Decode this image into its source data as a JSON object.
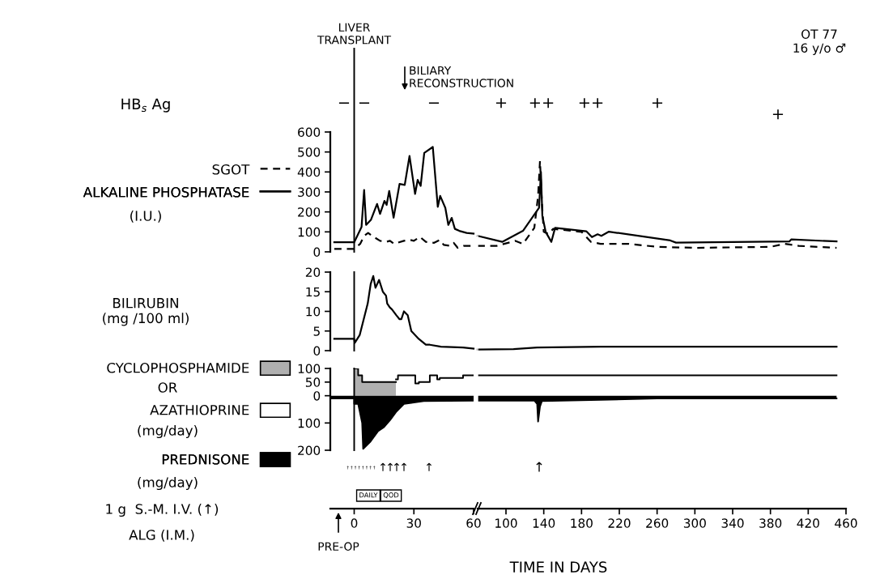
{
  "chart_data": [
    {
      "type": "line",
      "legend": "left",
      "ylabel": "(I.U.)",
      "xlim": [
        -12,
        60
      ],
      "ylim": [
        0,
        600
      ],
      "yticks": [
        0,
        100,
        200,
        300,
        400,
        500,
        600
      ],
      "tick_labels": "y",
      "series": [
        {
          "name": "SGOT",
          "color": "#000000",
          "line_style": "dashed",
          "x": [
            -10,
            0,
            3,
            5,
            7,
            9,
            13,
            16,
            18,
            20,
            25,
            28,
            30,
            33,
            36,
            40,
            43,
            45,
            48,
            50,
            52,
            55,
            60
          ],
          "values": [
            15,
            15,
            40,
            80,
            95,
            80,
            55,
            50,
            55,
            40,
            55,
            60,
            55,
            75,
            50,
            45,
            60,
            35,
            30,
            45,
            20,
            30,
            30
          ]
        },
        {
          "name": "ALKALINE PHOSPHATASE",
          "color": "#000000",
          "line_style": "solid",
          "x": [
            -10,
            0,
            3.7,
            5,
            6,
            8.4,
            11.5,
            13,
            15.2,
            16.3,
            17.6,
            19.8,
            22.8,
            25.4,
            27.8,
            30.6,
            31.9,
            33.4,
            35.2,
            39.5,
            41.3,
            42,
            43.2,
            45.8,
            47.3,
            49,
            50.6,
            52.8,
            56.5,
            60
          ],
          "values": [
            48,
            48,
            125,
            310,
            135,
            160,
            240,
            190,
            255,
            235,
            305,
            171,
            340,
            335,
            480,
            290,
            360,
            330,
            495,
            525,
            310,
            225,
            280,
            220,
            135,
            170,
            115,
            105,
            95,
            91
          ]
        }
      ],
      "ref_lines": [
        {
          "axis": "x",
          "value": 0,
          "label": "LIVER\nTRANSPLANT",
          "color": "#000000"
        }
      ],
      "annotations": [
        "HB$_{s}$ Ag",
        "−",
        "−",
        "−",
        "BILIARY\nRECONSTRUCTION"
      ]
    },
    {
      "type": "line",
      "xlim": [
        70,
        460
      ],
      "ylim": [
        0,
        600
      ],
      "tick_labels": false,
      "series": [
        {
          "color": "#000000",
          "line_style": "dashed",
          "x": [
            70,
            90,
            110,
            118,
            130,
            134,
            136,
            138,
            140,
            145,
            150,
            180,
            190,
            200,
            230,
            260,
            300,
            380,
            395,
            410,
            450
          ],
          "values": [
            30,
            30,
            55,
            40,
            120,
            280,
            455,
            250,
            100,
            90,
            115,
            100,
            50,
            40,
            40,
            25,
            20,
            25,
            40,
            30,
            20
          ]
        },
        {
          "color": "#000000",
          "line_style": "solid",
          "x": [
            70,
            96,
            118,
            135,
            137,
            138.5,
            142,
            148,
            152,
            185,
            191,
            197,
            201,
            209,
            274,
            280,
            400,
            402,
            450
          ],
          "values": [
            80,
            50,
            105,
            220,
            400,
            180,
            100,
            50,
            120,
            103,
            74,
            88,
            80,
            101,
            57,
            46,
            52,
            62,
            52
          ]
        }
      ],
      "annotations": [
        "+",
        "++",
        "++",
        "+",
        "+",
        "OT 77\n16 y/o ♂"
      ]
    },
    {
      "type": "line",
      "ylabel": "BILIRUBIN\n(mg /100 ml)",
      "xlim": [
        -12,
        60
      ],
      "ylim": [
        0,
        20
      ],
      "yticks": [
        0,
        5,
        10,
        15,
        20
      ],
      "tick_labels": "y",
      "series": [
        {
          "color": "#000000",
          "line_style": "solid",
          "x": [
            -10,
            0,
            0.3,
            2.8,
            6.8,
            8.3,
            9.6,
            10.7,
            12.5,
            14.4,
            16,
            16.6,
            17.9,
            19,
            21.2,
            22.8,
            23.7,
            25,
            26.9,
            28.7,
            32.4,
            36,
            38,
            43.6,
            54.7,
            60
          ],
          "values": [
            3,
            3,
            2,
            4,
            12,
            17,
            19,
            16,
            18,
            15,
            14,
            12,
            11,
            10.5,
            9,
            8,
            8,
            10,
            9,
            5,
            3,
            1.5,
            1.5,
            1,
            0.8,
            0.5
          ]
        }
      ],
      "ref_lines": [
        {
          "axis": "x",
          "value": 0,
          "color": "#000000"
        }
      ]
    },
    {
      "type": "line",
      "xlim": [
        70,
        460
      ],
      "ylim": [
        0,
        20
      ],
      "tick_labels": false,
      "series": [
        {
          "color": "#000000",
          "line_style": "solid",
          "x": [
            70,
            108,
            133,
            200,
            450
          ],
          "values": [
            0.3,
            0.4,
            0.8,
            1,
            1
          ]
        }
      ]
    },
    {
      "type": "area",
      "legend": "left",
      "ylabel": "(mg/day)",
      "xlim": [
        -12,
        60
      ],
      "xticks": [
        0,
        30,
        60
      ],
      "ylim": [
        -200,
        100
      ],
      "yticks": [
        {
          "value": -200,
          "label": "200"
        },
        {
          "value": -100,
          "label": "100"
        },
        0,
        50,
        100
      ],
      "series": [
        {
          "name": "CYCLOPHOSPHAMIDE",
          "color": "#b0b0b0",
          "x": [
            0,
            2,
            2,
            4,
            4,
            21
          ],
          "values": [
            100,
            100,
            75,
            75,
            50,
            50
          ]
        },
        {
          "name": "AZATHIOPRINE",
          "color": "#ffffff",
          "x": [
            21,
            22,
            22,
            24,
            24,
            30.7,
            30.7,
            32.5,
            32.5,
            38,
            38,
            41.7,
            41.7,
            43,
            43,
            54.7,
            54.7,
            60
          ],
          "values": [
            60,
            60,
            75,
            75,
            75,
            75,
            45,
            45,
            50,
            50,
            75,
            75,
            60,
            60,
            65,
            65,
            75,
            75
          ]
        },
        {
          "name": "PREDNISONE",
          "color": "#000000",
          "x": [
            -12,
            0,
            0,
            2,
            4,
            4.5,
            8,
            12,
            15,
            18,
            21,
            25,
            30,
            35,
            60
          ],
          "values": [
            -10,
            -10,
            -30,
            -30,
            -100,
            -195,
            -170,
            -130,
            -115,
            -90,
            -60,
            -30,
            -25,
            -20,
            -18
          ]
        }
      ],
      "ref_lines": [
        {
          "axis": "x",
          "value": 0,
          "color": "#000000"
        }
      ],
      "annotations": [
        "OR",
        "(mg/day)",
        "1 g  S.-M. I.V. (↑)",
        "ALG (I.M.)",
        "↑↑↑↑↑↑↑↑",
        "↑",
        "↑",
        "↑",
        "↑",
        "↑",
        "DAILY",
        "QOD",
        "PRE-OP"
      ]
    },
    {
      "type": "area",
      "xlabel": "TIME IN DAYS",
      "xlim": [
        70,
        460
      ],
      "xticks": [
        100,
        140,
        180,
        220,
        260,
        300,
        340,
        380,
        420,
        460
      ],
      "ylim": [
        -200,
        100
      ],
      "tick_labels": "x",
      "series": [
        {
          "color": "#ffffff",
          "x": [
            70,
            450
          ],
          "values": [
            75,
            75
          ]
        },
        {
          "color": "#000000",
          "x": [
            70,
            130,
            133,
            134,
            136,
            138,
            200,
            260,
            450
          ],
          "values": [
            -18,
            -18,
            -30,
            -95,
            -40,
            -20,
            -15,
            -10,
            -10
          ]
        }
      ],
      "annotations": [
        "↑"
      ]
    }
  ]
}
